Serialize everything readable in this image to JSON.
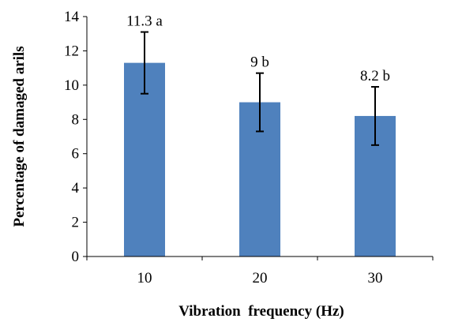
{
  "chart_data": {
    "type": "bar",
    "categories": [
      "10",
      "20",
      "30"
    ],
    "values": [
      11.3,
      9.0,
      8.2
    ],
    "error": [
      1.8,
      1.7,
      1.7
    ],
    "data_labels": [
      "11.3 a",
      "9 b",
      "8.2 b"
    ],
    "title": "",
    "xlabel": "Vibration  frequency (Hz)",
    "ylabel": "Percentage of damaged arils",
    "ylim": [
      0,
      14
    ],
    "yticks": [
      "0",
      "2",
      "4",
      "6",
      "8",
      "10",
      "12",
      "14"
    ],
    "grid": false,
    "legend": "none",
    "bar_color": "#4f81bd"
  }
}
